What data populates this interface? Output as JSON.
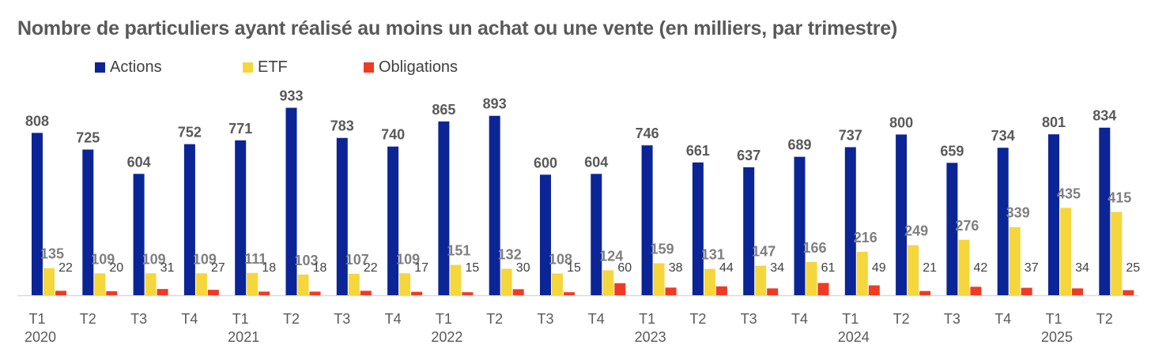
{
  "chart_data": {
    "type": "bar",
    "title": "Nombre de particuliers ayant réalisé au moins un achat ou une vente (en milliers, par trimestre)",
    "xlabel": "",
    "ylabel": "",
    "ylim": [
      0,
      950
    ],
    "grid": false,
    "legend_position": "top-left",
    "categories": [
      "T1",
      "T2",
      "T3",
      "T4",
      "T1",
      "T2",
      "T3",
      "T4",
      "T1",
      "T2",
      "T3",
      "T4",
      "T1",
      "T2",
      "T3",
      "T4",
      "T1",
      "T2",
      "T3",
      "T4",
      "T1",
      "T2"
    ],
    "years": [
      {
        "label": "2020",
        "index": 0
      },
      {
        "label": "2021",
        "index": 4
      },
      {
        "label": "2022",
        "index": 8
      },
      {
        "label": "2023",
        "index": 12
      },
      {
        "label": "2024",
        "index": 16
      },
      {
        "label": "2025",
        "index": 20
      }
    ],
    "series": [
      {
        "name": "Actions",
        "color": "#0B2596",
        "values": [
          808,
          725,
          604,
          752,
          771,
          933,
          783,
          740,
          865,
          893,
          600,
          604,
          746,
          661,
          637,
          689,
          737,
          800,
          659,
          734,
          801,
          834
        ]
      },
      {
        "name": "ETF",
        "color": "#F5D63D",
        "values": [
          135,
          109,
          109,
          109,
          111,
          103,
          107,
          109,
          151,
          132,
          108,
          124,
          159,
          131,
          147,
          166,
          216,
          249,
          276,
          339,
          435,
          415
        ]
      },
      {
        "name": "Obligations",
        "color": "#EE3B25",
        "values": [
          22,
          20,
          31,
          27,
          18,
          18,
          22,
          17,
          15,
          30,
          15,
          60,
          38,
          44,
          34,
          61,
          49,
          21,
          42,
          37,
          34,
          25
        ]
      }
    ]
  }
}
